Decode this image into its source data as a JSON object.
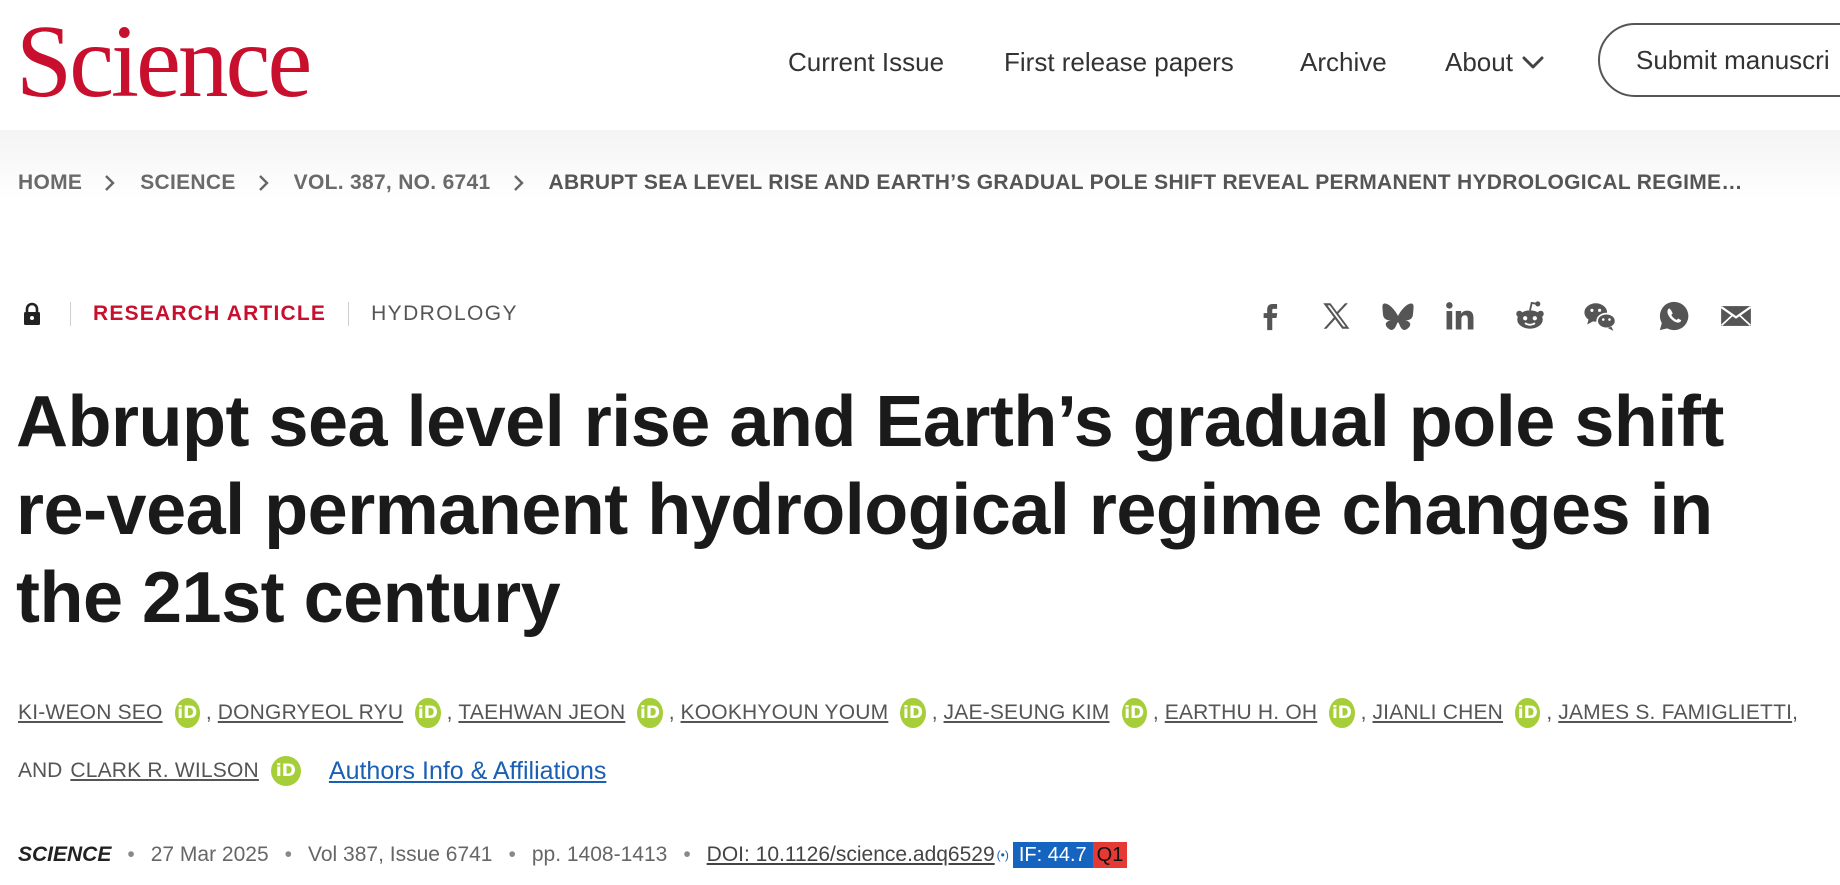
{
  "header": {
    "logo": "Science",
    "nav": [
      {
        "label": "Current Issue"
      },
      {
        "label": "First release papers"
      },
      {
        "label": "Archive"
      },
      {
        "label": "About"
      }
    ],
    "submit_label": "Submit manuscri"
  },
  "breadcrumb": [
    "HOME",
    "SCIENCE",
    "VOL. 387, NO. 6741",
    "ABRUPT SEA LEVEL RISE AND EARTH’S GRADUAL POLE SHIFT REVEAL PERMANENT HYDROLOGICAL REGIME…"
  ],
  "article": {
    "type": "RESEARCH ARTICLE",
    "subject": "HYDROLOGY",
    "title": "Abrupt sea level rise and Earth’s gradual pole shift re-veal permanent hydrological regime changes in the 21st century",
    "authors": [
      "KI-WEON SEO",
      "DONGRYEOL RYU",
      "TAEHWAN JEON",
      "KOOKHYOUN YOUM",
      "JAE-SEUNG KIM",
      "EARTHU H. OH",
      "JIANLI CHEN",
      "JAMES S. FAMIGLIETTI",
      "CLARK R. WILSON"
    ],
    "and_label": "AND",
    "orcid_label": "iD",
    "affiliations_link": "Authors Info & Affiliations"
  },
  "citation": {
    "journal": "SCIENCE",
    "date": "27 Mar 2025",
    "volume": "Vol 387, Issue 6741",
    "pages": "pp. 1408-1413",
    "doi": "DOI: 10.1126/science.adq6529",
    "signal": "(•)",
    "impact_factor": "IF: 44.7",
    "quartile": "Q1"
  },
  "share_icons": [
    "facebook-icon",
    "x-icon",
    "bluesky-icon",
    "linkedin-icon",
    "reddit-icon",
    "wechat-icon",
    "whatsapp-icon",
    "email-icon"
  ],
  "colors": {
    "brand": "#c8102e",
    "link": "#1a5fb4",
    "orcid": "#a6ce39",
    "if_badge": "#1565c0",
    "q_badge": "#e53935"
  }
}
